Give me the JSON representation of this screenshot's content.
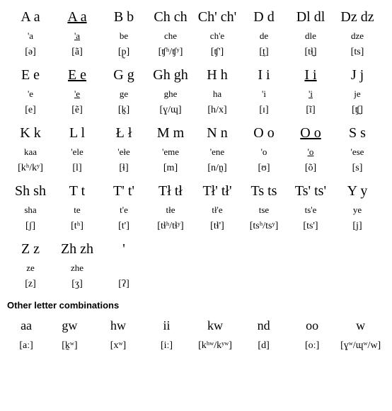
{
  "rows": [
    [
      {
        "letter": "A a",
        "underline": false,
        "name": "'a",
        "name_underline": false,
        "ipa": "[ə]"
      },
      {
        "letter": "A a",
        "underline": true,
        "name": "'a",
        "name_underline": true,
        "ipa": "[ã]"
      },
      {
        "letter": "B b",
        "underline": false,
        "name": "be",
        "name_underline": false,
        "ipa": "[p̰]"
      },
      {
        "letter": "Ch ch",
        "underline": false,
        "name": "che",
        "name_underline": false,
        "ipa": "[ʧʰ/ʧʸ]"
      },
      {
        "letter": "Ch' ch'",
        "underline": false,
        "name": "ch'e",
        "name_underline": false,
        "ipa": "[ʧ']"
      },
      {
        "letter": "D d",
        "underline": false,
        "name": "de",
        "name_underline": false,
        "ipa": "[t̰]"
      },
      {
        "letter": "Dl dl",
        "underline": false,
        "name": "dle",
        "name_underline": false,
        "ipa": "[tɬ̰]"
      },
      {
        "letter": "Dz dz",
        "underline": false,
        "name": "dze",
        "name_underline": false,
        "ipa": "[ts]"
      }
    ],
    [
      {
        "letter": "E e",
        "underline": false,
        "name": "'e",
        "name_underline": false,
        "ipa": "[e]"
      },
      {
        "letter": "E e",
        "underline": true,
        "name": "'e",
        "name_underline": true,
        "ipa": "[ẽ]"
      },
      {
        "letter": "G g",
        "underline": false,
        "name": "ge",
        "name_underline": false,
        "ipa": "[k̰]"
      },
      {
        "letter": "Gh gh",
        "underline": false,
        "name": "ghe",
        "name_underline": false,
        "ipa": "[ɣ/ɰ]"
      },
      {
        "letter": "H h",
        "underline": false,
        "name": "ha",
        "name_underline": false,
        "ipa": "[h/x]"
      },
      {
        "letter": "I i",
        "underline": false,
        "name": "'i",
        "name_underline": false,
        "ipa": "[ɪ]"
      },
      {
        "letter": "I i",
        "underline": true,
        "name": "'i",
        "name_underline": true,
        "ipa": "[ĩ]"
      },
      {
        "letter": "J j",
        "underline": false,
        "name": "je",
        "name_underline": false,
        "ipa": "[ʧ̰]"
      }
    ],
    [
      {
        "letter": "K k",
        "underline": false,
        "name": "kaa",
        "name_underline": false,
        "ipa": "[kʰ/kʸ]"
      },
      {
        "letter": "L l",
        "underline": false,
        "name": "'ele",
        "name_underline": false,
        "ipa": "[l]"
      },
      {
        "letter": "Ł ł",
        "underline": false,
        "name": "'ełe",
        "name_underline": false,
        "ipa": "[ɬ]"
      },
      {
        "letter": "M m",
        "underline": false,
        "name": "'eme",
        "name_underline": false,
        "ipa": "[m]"
      },
      {
        "letter": "N n",
        "underline": false,
        "name": "'ene",
        "name_underline": false,
        "ipa": "[n/n̰]"
      },
      {
        "letter": "O o",
        "underline": false,
        "name": "'o",
        "name_underline": false,
        "ipa": "[ʊ]"
      },
      {
        "letter": "O o",
        "underline": true,
        "name": "'o",
        "name_underline": true,
        "ipa": "[õ]"
      },
      {
        "letter": "S s",
        "underline": false,
        "name": "'ese",
        "name_underline": false,
        "ipa": "[s]"
      }
    ],
    [
      {
        "letter": "Sh sh",
        "underline": false,
        "name": "sha",
        "name_underline": false,
        "ipa": "[ʃ]"
      },
      {
        "letter": "T t",
        "underline": false,
        "name": "te",
        "name_underline": false,
        "ipa": "[tʰ]"
      },
      {
        "letter": "T' t'",
        "underline": false,
        "name": "t'e",
        "name_underline": false,
        "ipa": "[t']"
      },
      {
        "letter": "Tł tł",
        "underline": false,
        "name": "tłe",
        "name_underline": false,
        "ipa": "[tɬʰ/tɬʸ]"
      },
      {
        "letter": "Tł' tł'",
        "underline": false,
        "name": "tł'e",
        "name_underline": false,
        "ipa": "[tɬ']"
      },
      {
        "letter": "Ts ts",
        "underline": false,
        "name": "tse",
        "name_underline": false,
        "ipa": "[tsʰ/tsʸ]"
      },
      {
        "letter": "Ts' ts'",
        "underline": false,
        "name": "ts'e",
        "name_underline": false,
        "ipa": "[ts']"
      },
      {
        "letter": "Y y",
        "underline": false,
        "name": "ye",
        "name_underline": false,
        "ipa": "[j]"
      }
    ],
    [
      {
        "letter": "Z z",
        "underline": false,
        "name": "ze",
        "name_underline": false,
        "ipa": "[z]"
      },
      {
        "letter": "Zh zh",
        "underline": false,
        "name": "zhe",
        "name_underline": false,
        "ipa": "[ʒ]"
      },
      {
        "letter": "'",
        "underline": false,
        "name": "",
        "name_underline": false,
        "ipa": "[ʔ]"
      }
    ]
  ],
  "section_title": "Other letter combinations",
  "combos": [
    {
      "letter": "aa",
      "ipa": "[aː]"
    },
    {
      "letter": "gw",
      "ipa": "[k̰ʷ]"
    },
    {
      "letter": "hw",
      "ipa": "[xʷ]"
    },
    {
      "letter": "ii",
      "ipa": "[iː]"
    },
    {
      "letter": "kw",
      "ipa": "[kʰʷ/kʸʷ]"
    },
    {
      "letter": "nd",
      "ipa": "[d]"
    },
    {
      "letter": "oo",
      "ipa": "[oː]"
    },
    {
      "letter": "w",
      "ipa": "[ɣʷ/ɰʷ/w]"
    }
  ]
}
